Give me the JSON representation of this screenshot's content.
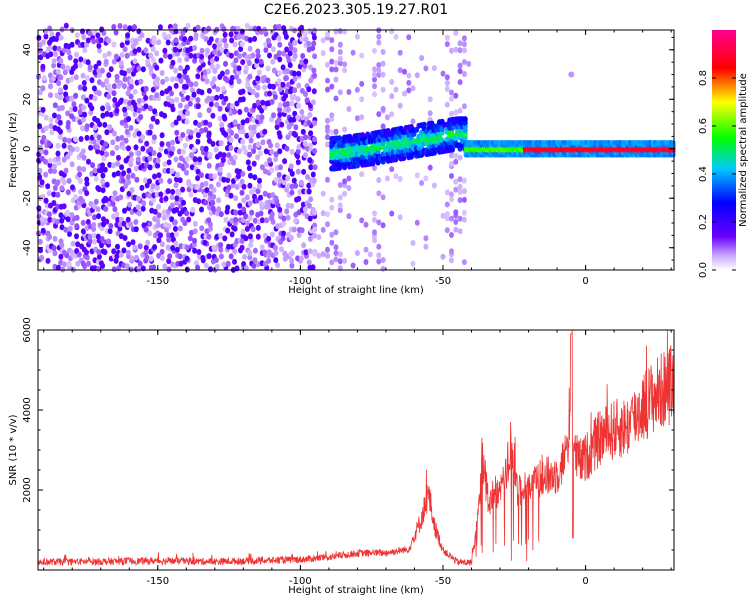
{
  "title": "C2E6.2023.305.19.27.R01",
  "chart_data": [
    {
      "type": "heatmap",
      "xlabel": "Height of straight line (km)",
      "ylabel": "Frequency (Hz)",
      "xlim": [
        -192,
        31
      ],
      "ylim": [
        -49,
        48
      ],
      "xticks": [
        -150,
        -100,
        -50,
        0
      ],
      "yticks": [
        -40,
        -20,
        0,
        20,
        40
      ],
      "colorbar": {
        "label": "Normalized spectral amplitude",
        "range": [
          0,
          1
        ],
        "ticks": [
          "0.0",
          "0.2",
          "0.4",
          "0.6",
          "0.8"
        ],
        "colormap": [
          "#ffffff",
          "#6a00ff",
          "#0000ff",
          "#00c8ff",
          "#00ff00",
          "#ffff00",
          "#ff0000",
          "#ff0090"
        ]
      },
      "features": [
        {
          "name": "broadband-noise",
          "x_range": [
            -192,
            -95
          ],
          "y_range": [
            -49,
            48
          ],
          "amplitude": 0.15
        },
        {
          "name": "sparse-noise",
          "x_range": [
            -95,
            -40
          ],
          "y_range": [
            -49,
            48
          ],
          "amplitude": 0.08
        },
        {
          "name": "signal-band-rising",
          "x": [
            -88,
            -75,
            -65,
            -55,
            -45
          ],
          "y": [
            -2,
            0,
            2,
            4,
            6
          ],
          "amplitude": 0.45
        },
        {
          "name": "signal-band-flat",
          "x_range": [
            -42,
            31
          ],
          "y": 0,
          "amplitude": 0.9
        }
      ]
    },
    {
      "type": "line",
      "xlabel": "Height of straight line (km)",
      "ylabel": "SNR (10 * v/v)",
      "xlim": [
        -192,
        31
      ],
      "ylim": [
        0,
        6000
      ],
      "xticks": [
        -150,
        -100,
        -50,
        0
      ],
      "yticks": [
        2000,
        4000,
        6000
      ],
      "color": "#ee3333",
      "series": [
        {
          "x": [
            -192,
            -170,
            -150,
            -130,
            -110,
            -100,
            -90,
            -80,
            -70,
            -62,
            -58,
            -55,
            -53,
            -50,
            -45,
            -40,
            -38,
            -36,
            -34,
            -32,
            -30,
            -28,
            -26,
            -24,
            -22,
            -20,
            -15,
            -10,
            -8,
            -6,
            -5,
            -4,
            -2,
            0,
            5,
            10,
            15,
            20,
            25,
            31
          ],
          "y": [
            200,
            210,
            230,
            210,
            240,
            260,
            320,
            420,
            430,
            520,
            1200,
            1900,
            1100,
            500,
            200,
            180,
            1200,
            2800,
            1600,
            2000,
            1900,
            2300,
            3300,
            2000,
            1900,
            2100,
            2300,
            2400,
            2700,
            3100,
            6000,
            2900,
            2700,
            2800,
            3300,
            3500,
            3600,
            4100,
            4400,
            4700
          ]
        }
      ]
    }
  ]
}
